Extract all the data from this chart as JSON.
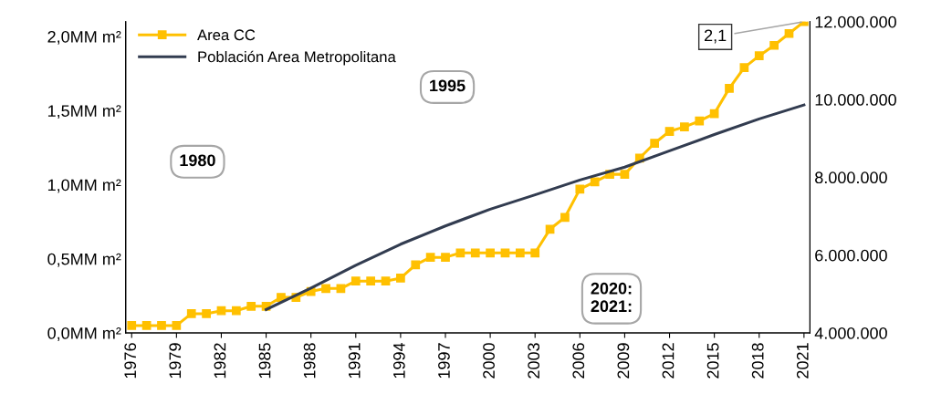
{
  "chart_data": {
    "type": "line",
    "xlim": [
      1975.6,
      2021.4
    ],
    "xticks": [
      1976,
      1979,
      1982,
      1985,
      1988,
      1991,
      1994,
      1997,
      2000,
      2003,
      2006,
      2009,
      2012,
      2015,
      2018,
      2021
    ],
    "ylim": [
      0,
      2.1
    ],
    "yticks": [
      {
        "value": 0,
        "label": "0,0MM m²"
      },
      {
        "value": 0.5,
        "label": "0,5MM m²"
      },
      {
        "value": 1.0,
        "label": "1,0MM m²"
      },
      {
        "value": 1.5,
        "label": "1,5MM m²"
      },
      {
        "value": 2.0,
        "label": "2,0MM m²"
      }
    ],
    "y2lim": [
      4000000,
      12000000
    ],
    "y2ticks": [
      {
        "value": 4000000,
        "label": "4.000.000"
      },
      {
        "value": 6000000,
        "label": "6.000.000"
      },
      {
        "value": 8000000,
        "label": "8.000.000"
      },
      {
        "value": 10000000,
        "label": "10.000.000"
      },
      {
        "value": 12000000,
        "label": "12.000.000"
      }
    ],
    "marker": "square",
    "grid": false,
    "legend": "top left",
    "series": [
      {
        "name": "Area CC",
        "color": "#ffc000",
        "x": [
          1976,
          1977,
          1978,
          1979,
          1980,
          1981,
          1982,
          1983,
          1984,
          1985,
          1986,
          1987,
          1988,
          1989,
          1990,
          1991,
          1992,
          1993,
          1994,
          1995,
          1996,
          1997,
          1998,
          1999,
          2000,
          2001,
          2002,
          2003,
          2004,
          2005,
          2006,
          2007,
          2008,
          2009,
          2010,
          2011,
          2012,
          2013,
          2014,
          2015,
          2016,
          2017,
          2018,
          2019,
          2020,
          2021
        ],
        "values": [
          0.05,
          0.05,
          0.05,
          0.05,
          0.13,
          0.13,
          0.15,
          0.15,
          0.18,
          0.18,
          0.24,
          0.24,
          0.28,
          0.3,
          0.3,
          0.35,
          0.35,
          0.35,
          0.37,
          0.46,
          0.51,
          0.51,
          0.54,
          0.54,
          0.54,
          0.54,
          0.54,
          0.54,
          0.7,
          0.78,
          0.97,
          1.02,
          1.07,
          1.07,
          1.18,
          1.28,
          1.36,
          1.39,
          1.43,
          1.48,
          1.65,
          1.79,
          1.87,
          1.94,
          2.02,
          2.1
        ]
      },
      {
        "name": "Población Area Metropolitana",
        "color": "#323c50",
        "axis": "y2",
        "marker": "none",
        "x": [
          1985,
          1988,
          1991,
          1994,
          1997,
          2000,
          2003,
          2006,
          2009,
          2012,
          2015,
          2018,
          2021
        ],
        "values": [
          4600000,
          5150000,
          5740000,
          6280000,
          6750000,
          7180000,
          7550000,
          7930000,
          8260000,
          8680000,
          9100000,
          9500000,
          9860000
        ]
      }
    ],
    "annotations": [
      {
        "text": "2,1",
        "x": 2021,
        "y": 2.1
      },
      "1980",
      "1995",
      "2020:",
      "2021:"
    ]
  }
}
